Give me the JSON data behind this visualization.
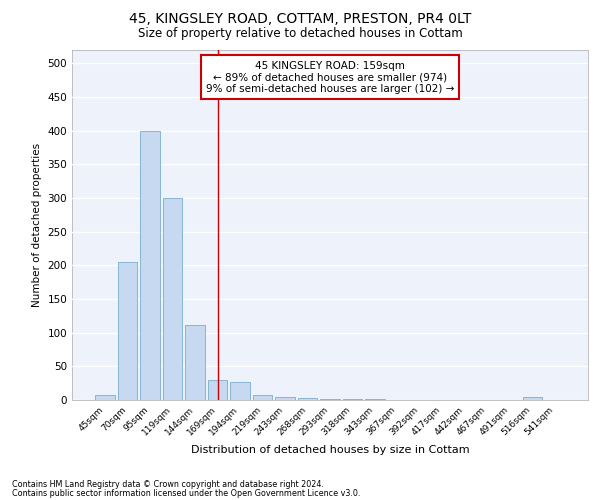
{
  "title_line1": "45, KINGSLEY ROAD, COTTAM, PRESTON, PR4 0LT",
  "title_line2": "Size of property relative to detached houses in Cottam",
  "xlabel": "Distribution of detached houses by size in Cottam",
  "ylabel": "Number of detached properties",
  "bar_labels": [
    "45sqm",
    "70sqm",
    "95sqm",
    "119sqm",
    "144sqm",
    "169sqm",
    "194sqm",
    "219sqm",
    "243sqm",
    "268sqm",
    "293sqm",
    "318sqm",
    "343sqm",
    "367sqm",
    "392sqm",
    "417sqm",
    "442sqm",
    "467sqm",
    "491sqm",
    "516sqm",
    "541sqm"
  ],
  "bar_values": [
    8,
    205,
    400,
    300,
    112,
    30,
    27,
    8,
    5,
    3,
    2,
    2,
    2,
    0,
    0,
    0,
    0,
    0,
    0,
    4,
    0
  ],
  "bar_color": "#c6d9f0",
  "bar_edge_color": "#7aadce",
  "vline_x": 5,
  "vline_color": "#cc0000",
  "annotation_text": "45 KINGSLEY ROAD: 159sqm\n← 89% of detached houses are smaller (974)\n9% of semi-detached houses are larger (102) →",
  "annotation_box_color": "#ffffff",
  "annotation_box_edge": "#cc0000",
  "ylim": [
    0,
    520
  ],
  "yticks": [
    0,
    50,
    100,
    150,
    200,
    250,
    300,
    350,
    400,
    450,
    500
  ],
  "background_color": "#edf2fb",
  "grid_color": "#ffffff",
  "footer_line1": "Contains HM Land Registry data © Crown copyright and database right 2024.",
  "footer_line2": "Contains public sector information licensed under the Open Government Licence v3.0."
}
